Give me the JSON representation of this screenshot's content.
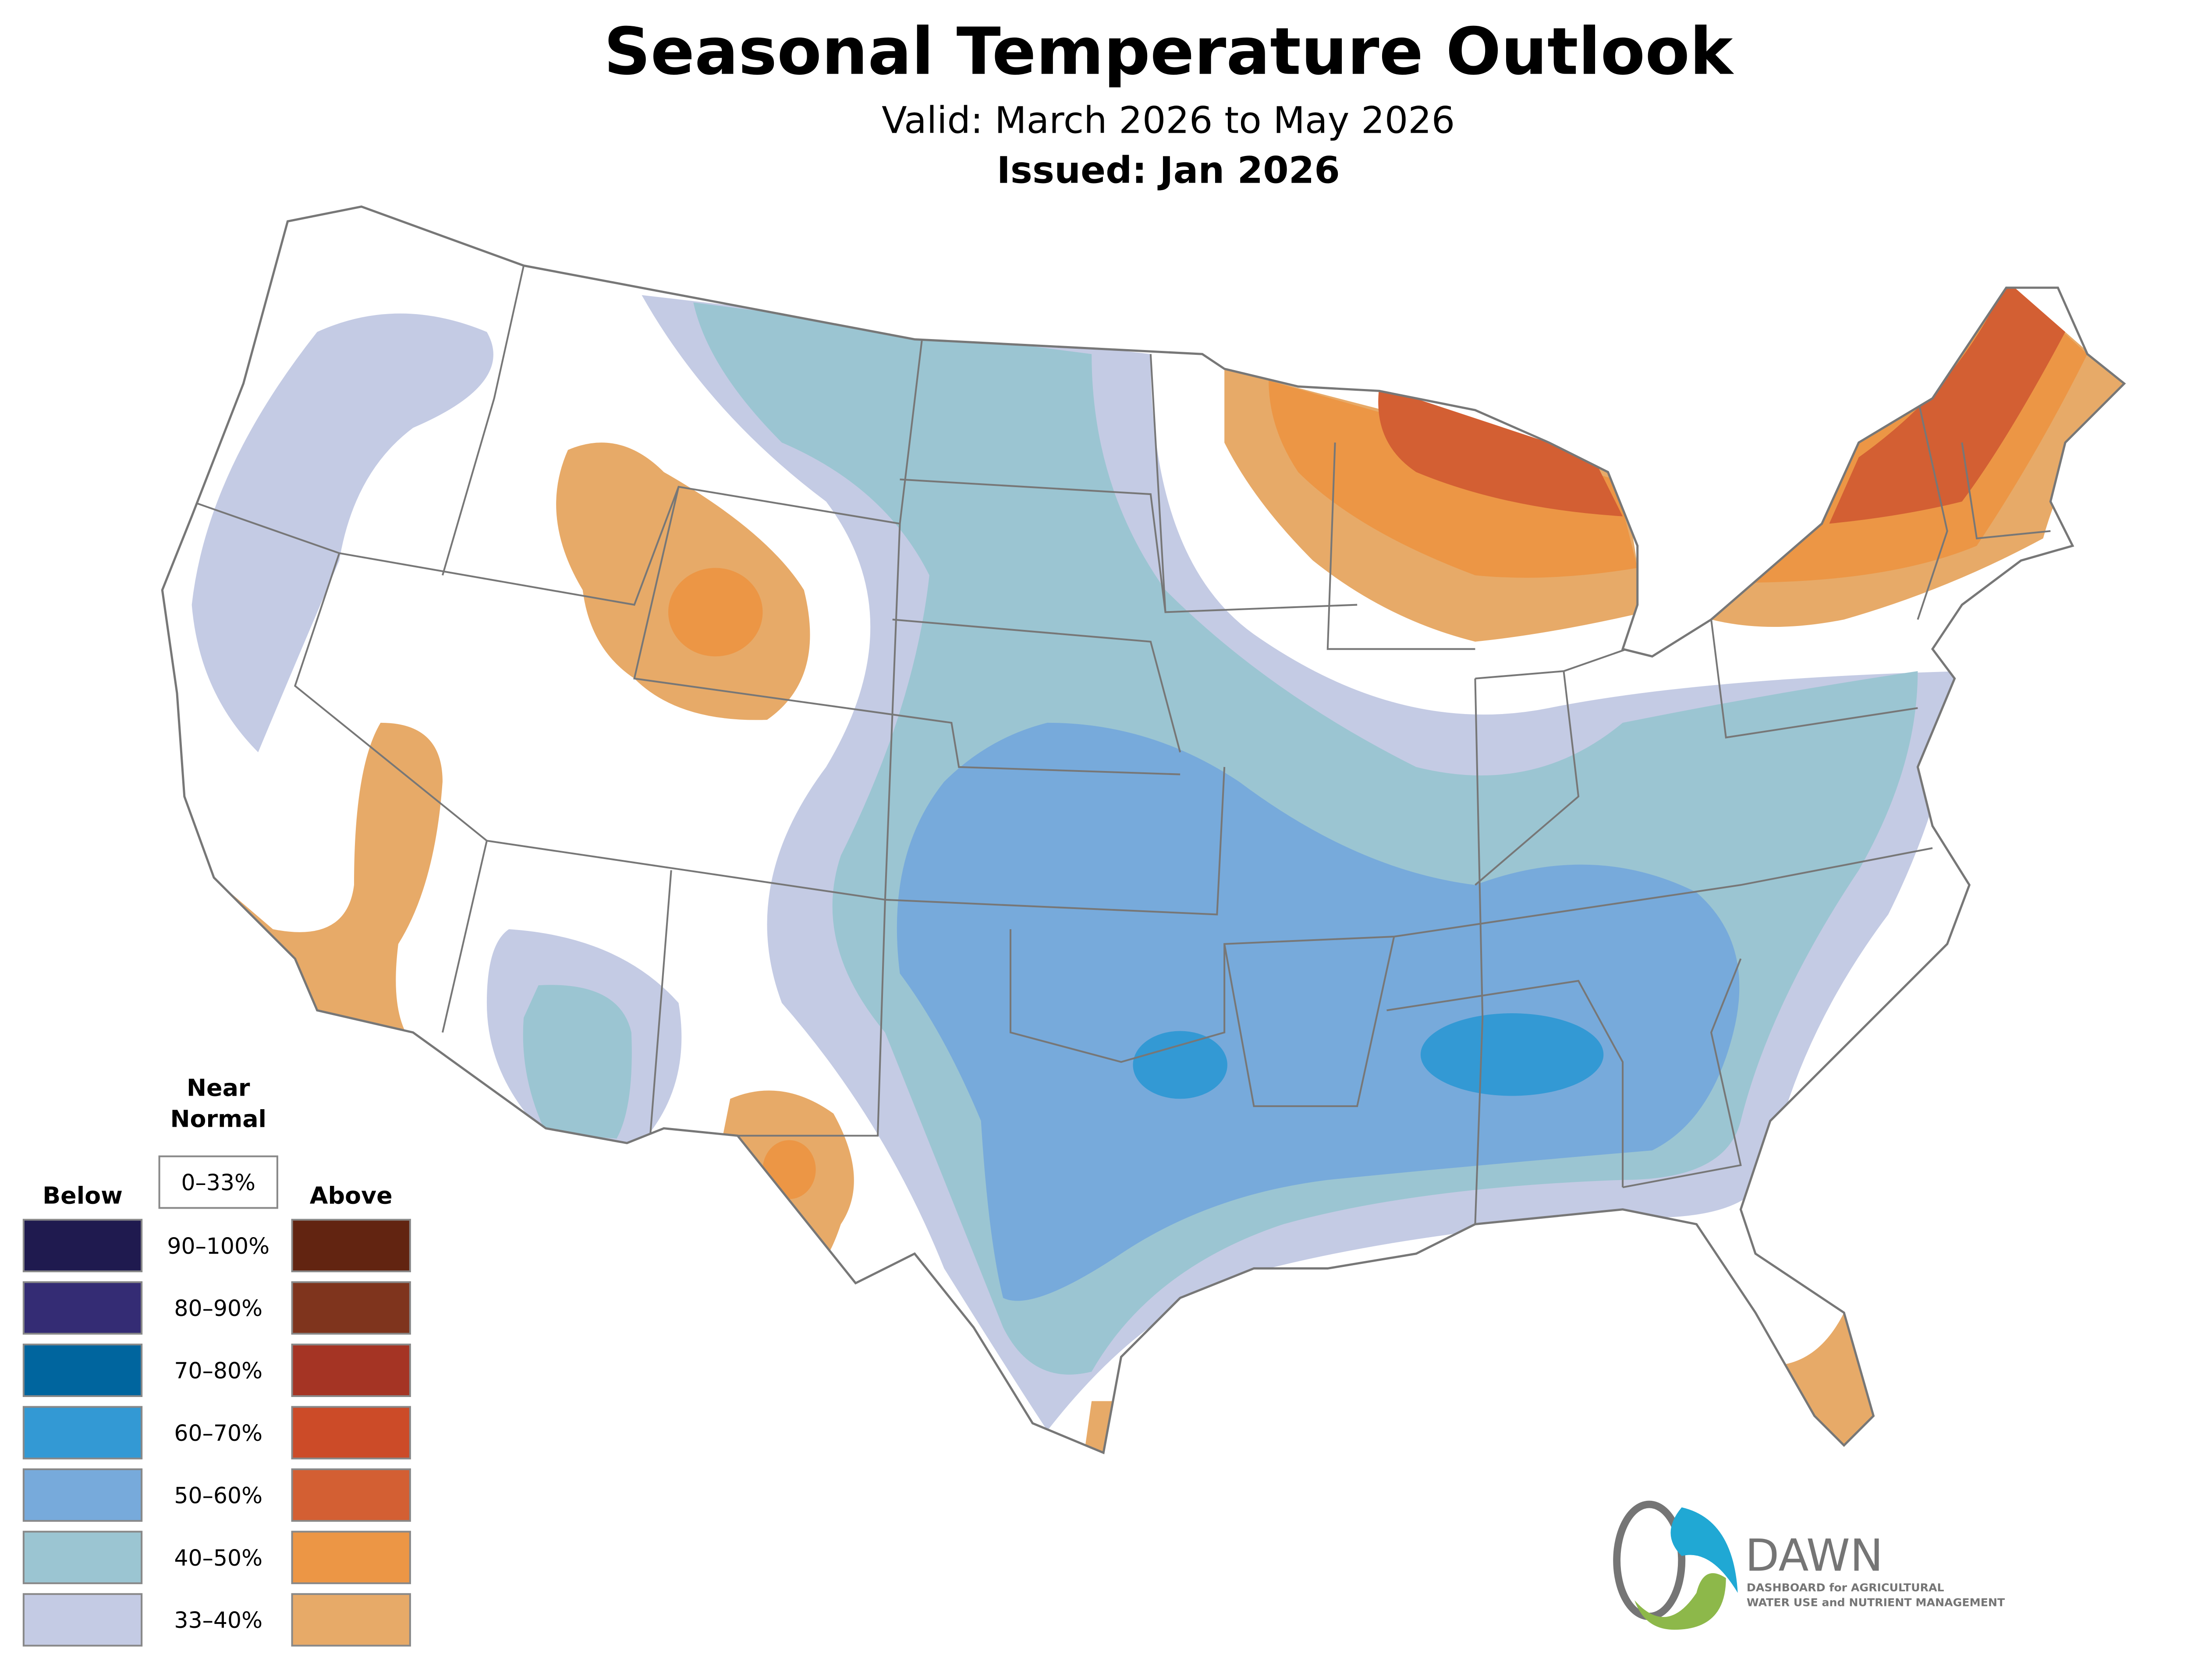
{
  "header": {
    "title": "Seasonal Temperature Outlook",
    "valid": "Valid: March 2026 to May 2026",
    "issued": "Issued: Jan 2026"
  },
  "legend": {
    "near_normal_line1": "Near",
    "near_normal_line2": "Normal",
    "near_normal_range": "0–33%",
    "below_label": "Below",
    "above_label": "Above",
    "rows": [
      {
        "range": "90–100%",
        "below_color": "#1f1a4f",
        "above_color": "#622411"
      },
      {
        "range": "80–90%",
        "below_color": "#342c74",
        "above_color": "#7f341d"
      },
      {
        "range": "70–80%",
        "below_color": "#00659e",
        "above_color": "#a53424"
      },
      {
        "range": "60–70%",
        "below_color": "#3399d4",
        "above_color": "#cc4b28"
      },
      {
        "range": "50–60%",
        "below_color": "#77aadb",
        "above_color": "#d35f33"
      },
      {
        "range": "40–50%",
        "below_color": "#9bc5d2",
        "above_color": "#ec9645"
      },
      {
        "range": "33–40%",
        "below_color": "#c4cbe4",
        "above_color": "#e7aa68"
      }
    ]
  },
  "logo": {
    "name": "DAWN",
    "tagline_line1": "DASHBOARD for AGRICULTURAL",
    "tagline_line2": "WATER USE and NUTRIENT MANAGEMENT",
    "colors": {
      "blue": "#20a8d4",
      "green": "#8db84a",
      "gray": "#757575"
    }
  }
}
